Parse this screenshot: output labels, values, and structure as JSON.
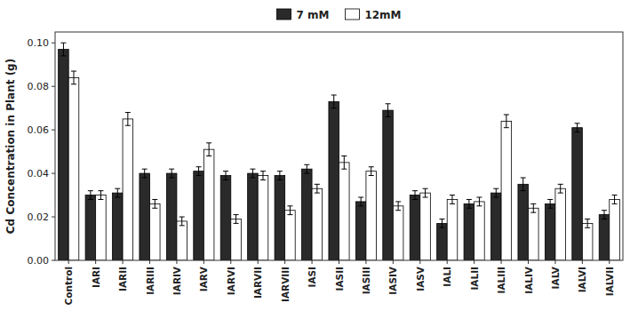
{
  "chart_data": {
    "type": "bar",
    "categories": [
      "Control",
      "IARI",
      "IARII",
      "IARIII",
      "IARIV",
      "IARV",
      "IARVI",
      "IARVII",
      "IARVIII",
      "IASI",
      "IASII",
      "IASIII",
      "IASIV",
      "IASV",
      "IALI",
      "IALII",
      "IALIII",
      "IALIV",
      "IALV",
      "IALVI",
      "IALVII"
    ],
    "series": [
      {
        "name": "7 mM",
        "color": "#2a2a2a",
        "values": [
          0.097,
          0.03,
          0.031,
          0.04,
          0.04,
          0.041,
          0.039,
          0.04,
          0.039,
          0.042,
          0.073,
          0.027,
          0.069,
          0.03,
          0.017,
          0.026,
          0.031,
          0.035,
          0.026,
          0.061,
          0.021
        ],
        "errors": [
          0.003,
          0.002,
          0.002,
          0.002,
          0.002,
          0.002,
          0.002,
          0.002,
          0.002,
          0.002,
          0.003,
          0.002,
          0.003,
          0.002,
          0.002,
          0.002,
          0.002,
          0.003,
          0.002,
          0.002,
          0.002
        ]
      },
      {
        "name": "12mM",
        "color": "#ffffff",
        "values": [
          0.084,
          0.03,
          0.065,
          0.026,
          0.018,
          0.051,
          0.019,
          0.039,
          0.023,
          0.033,
          0.045,
          0.041,
          0.025,
          0.031,
          0.028,
          0.027,
          0.064,
          0.024,
          0.033,
          0.017,
          0.028
        ],
        "errors": [
          0.003,
          0.002,
          0.003,
          0.002,
          0.002,
          0.003,
          0.002,
          0.002,
          0.002,
          0.002,
          0.003,
          0.002,
          0.002,
          0.002,
          0.002,
          0.002,
          0.003,
          0.002,
          0.002,
          0.002,
          0.002
        ]
      }
    ],
    "ylabel": "Cd Concentration in Plant (g)",
    "ylim": [
      0,
      0.105
    ],
    "yticks": [
      {
        "value": 0,
        "label": "0.00"
      },
      0.02,
      0.04,
      0.06,
      0.08,
      {
        "value": 0.1,
        "label": "0.10"
      }
    ],
    "grid": false,
    "legend": "upper center"
  }
}
